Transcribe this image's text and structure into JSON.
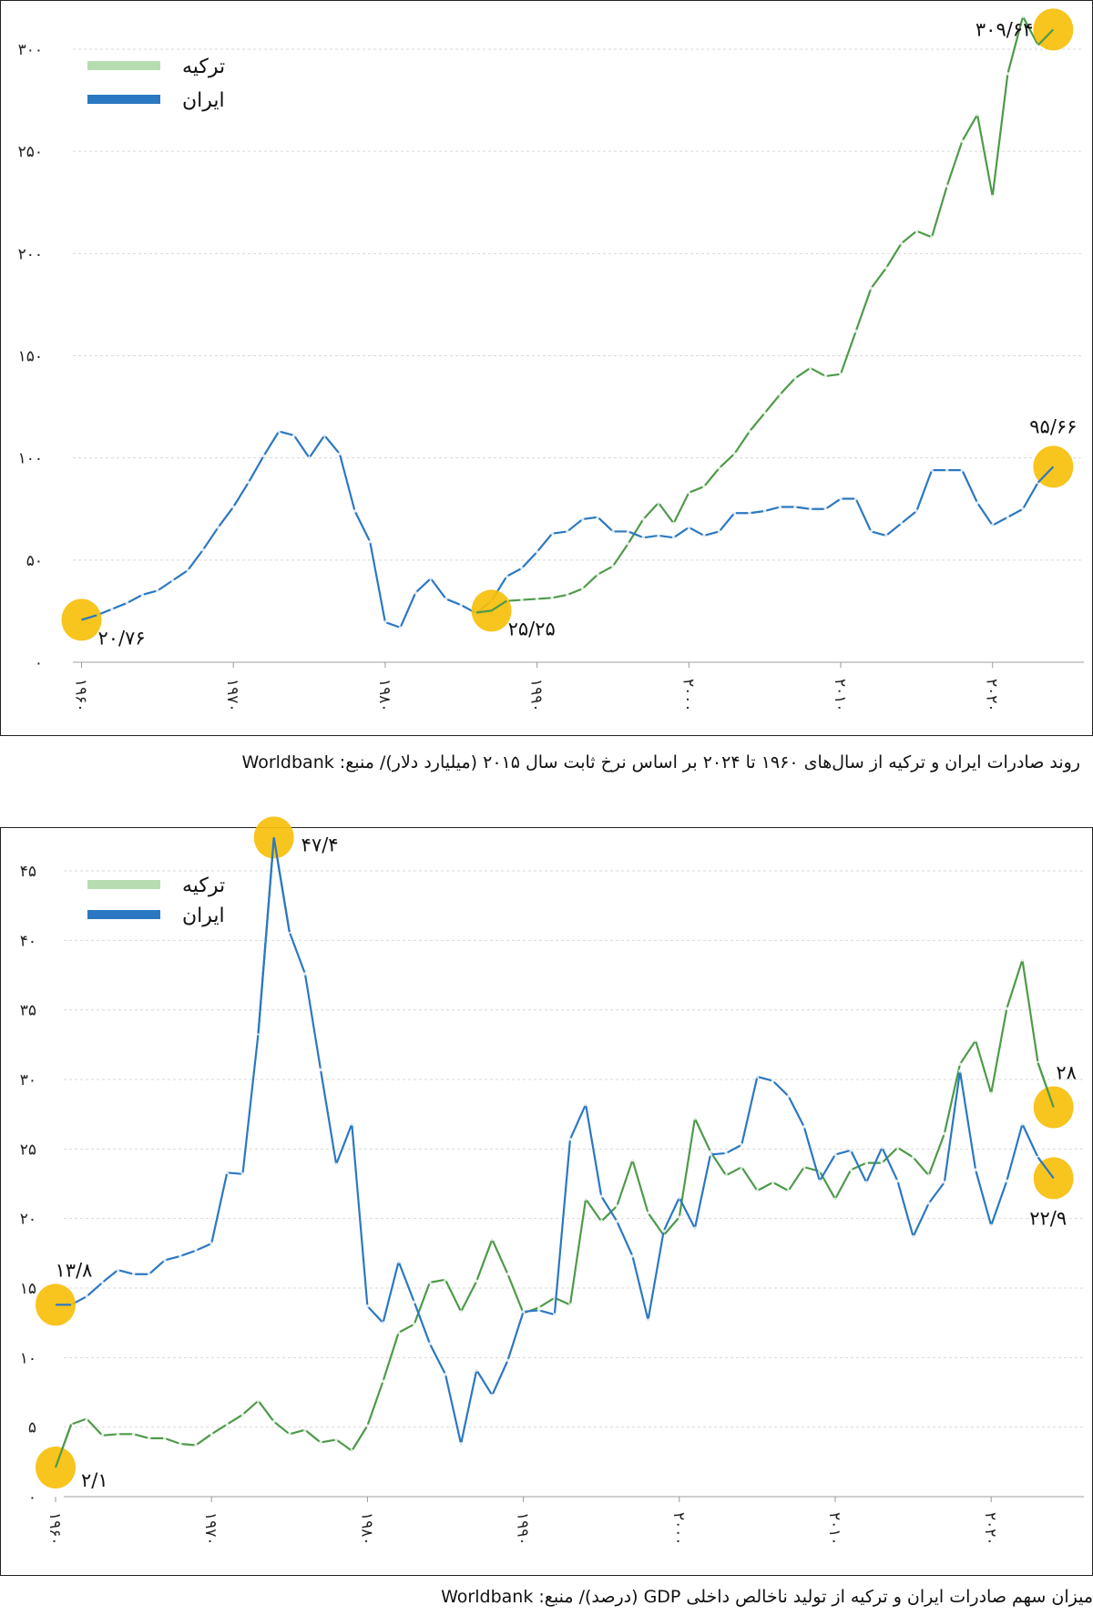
{
  "chart_data": [
    {
      "type": "line",
      "caption": "روند صادرات ایران و ترکیه از سال‌های ۱۹۶۰ تا ۲۰۲۴ بر اساس نرخ ثابت سال ۲۰۱۵ (میلیارد دلار)/ منبع: Worldbank",
      "ylim": [
        0,
        300
      ],
      "xlim": [
        1960,
        2024
      ],
      "grid": true,
      "legend": "top-left",
      "yticks": [
        0,
        50,
        100,
        150,
        200,
        250,
        300
      ],
      "ytick_labels": [
        "۰",
        "۵۰",
        "۱۰۰",
        "۱۵۰",
        "۲۰۰",
        "۲۵۰",
        "۳۰۰"
      ],
      "xticks": [
        1960,
        1970,
        1980,
        1990,
        2000,
        2010,
        2020
      ],
      "xtick_labels": [
        "۱۹۶۰",
        "۱۹۷۰",
        "۱۹۸۰",
        "۱۹۹۰",
        "۲۰۰۰",
        "۲۰۱۰",
        "۲۰۲۰"
      ],
      "x_start": 1960,
      "series": [
        {
          "name": "ترکیه",
          "color": "#4e9a4a",
          "legend_color": "#b7dcb2",
          "values": [
            null,
            null,
            null,
            null,
            null,
            null,
            null,
            null,
            null,
            null,
            null,
            null,
            null,
            null,
            null,
            null,
            null,
            null,
            null,
            null,
            null,
            null,
            null,
            null,
            null,
            null,
            24.3,
            25.25,
            30,
            30.5,
            31,
            31.5,
            33,
            36,
            43,
            47,
            58,
            70,
            78,
            68,
            83,
            86,
            95,
            102,
            113,
            122,
            131,
            139,
            144,
            140,
            141,
            162,
            183,
            193,
            205,
            211,
            208,
            233,
            255,
            268,
            228,
            288,
            316,
            302,
            309.64
          ]
        },
        {
          "name": "ایران",
          "color": "#2b78c2",
          "legend_color": "#2b78c2",
          "values": [
            20.76,
            23,
            26,
            29,
            33,
            35,
            40,
            45,
            55,
            66,
            76,
            88,
            101,
            113,
            111,
            100,
            111,
            102,
            74,
            59,
            19.6,
            17,
            34,
            41,
            31,
            28,
            24,
            30,
            42,
            46,
            54,
            63,
            64,
            70,
            71,
            64,
            64,
            61,
            62,
            61,
            66,
            62,
            64,
            73,
            73,
            74,
            76,
            76,
            75,
            75,
            80,
            80,
            64,
            62,
            68,
            74,
            94,
            94,
            94,
            78,
            67,
            71,
            75,
            88,
            95.66
          ]
        }
      ],
      "annotations": [
        {
          "text": "۳۰۹/۶۴",
          "series": "ترکیه",
          "year": 2024,
          "value": 309.64
        },
        {
          "text": "۹۵/۶۶",
          "series": "ایران",
          "year": 2024,
          "value": 95.66
        },
        {
          "text": "۲۵/۲۵",
          "series": "ترکیه",
          "year": 1987,
          "value": 25.25
        },
        {
          "text": "۲۰/۷۶",
          "series": "ایران",
          "year": 1960,
          "value": 20.76
        }
      ],
      "highlight_color": "#f7bf0b"
    },
    {
      "type": "line",
      "caption": "میزان سهم صادرات ایران و ترکیه از تولید ناخالص داخلی GDP (درصد)/ منبع: Worldbank",
      "ylim": [
        0,
        45
      ],
      "xlim": [
        1960,
        2024
      ],
      "grid": true,
      "legend": "top-left",
      "yticks": [
        0,
        5,
        10,
        15,
        20,
        25,
        30,
        35,
        40,
        45
      ],
      "ytick_labels": [
        "۰",
        "۵",
        "۱۰",
        "۱۵",
        "۲۰",
        "۲۵",
        "۳۰",
        "۳۵",
        "۴۰",
        "۴۵"
      ],
      "xticks": [
        1960,
        1970,
        1980,
        1990,
        2000,
        2010,
        2020
      ],
      "xtick_labels": [
        "۱۹۶۰",
        "۱۹۷۰",
        "۱۹۸۰",
        "۱۹۹۰",
        "۲۰۰۰",
        "۲۰۱۰",
        "۲۰۲۰"
      ],
      "x_start": 1960,
      "series": [
        {
          "name": "ترکیه",
          "color": "#4e9a4a",
          "legend_color": "#b7dcb2",
          "values": [
            2.1,
            5.2,
            5.6,
            4.4,
            4.5,
            4.5,
            4.2,
            4.2,
            3.8,
            3.7,
            4.5,
            5.2,
            5.9,
            6.9,
            5.4,
            4.5,
            4.8,
            3.9,
            4.1,
            3.3,
            5.1,
            8.3,
            11.8,
            12.4,
            15.4,
            15.6,
            13.3,
            15.5,
            18.5,
            16.0,
            13.2,
            13.6,
            14.3,
            13.8,
            21.4,
            19.8,
            20.9,
            24.2,
            20.4,
            18.8,
            20.1,
            27.2,
            24.8,
            23.1,
            23.7,
            22.0,
            22.6,
            22.0,
            23.7,
            23.4,
            21.4,
            23.5,
            24.0,
            24.0,
            25.1,
            24.4,
            23.1,
            26.1,
            31.1,
            32.8,
            29.0,
            35.1,
            38.6,
            31.2,
            28
          ]
        },
        {
          "name": "ایران",
          "color": "#2b78c2",
          "legend_color": "#2b78c2",
          "values": [
            13.8,
            13.8,
            14.4,
            15.4,
            16.3,
            16.0,
            16.0,
            17.0,
            17.3,
            17.7,
            18.2,
            23.3,
            23.2,
            33.3,
            47.4,
            40.6,
            37.6,
            30.7,
            23.9,
            26.8,
            13.7,
            12.5,
            16.9,
            14.0,
            11.0,
            8.8,
            3.8,
            9.1,
            7.3,
            9.8,
            13.3,
            13.4,
            13.1,
            25.7,
            28.2,
            21.6,
            19.8,
            17.3,
            12.7,
            19.1,
            21.5,
            19.3,
            24.6,
            24.7,
            25.3,
            30.2,
            29.9,
            28.8,
            26.6,
            22.7,
            24.6,
            24.9,
            22.6,
            25.1,
            22.7,
            18.7,
            21.1,
            22.6,
            30.6,
            23.5,
            19.5,
            22.7,
            26.8,
            24.4,
            22.9
          ]
        }
      ],
      "annotations": [
        {
          "text": "۴۷/۴",
          "series": "ایران",
          "year": 1974,
          "value": 47.4
        },
        {
          "text": "۱۳/۸",
          "series": "ایران",
          "year": 1960,
          "value": 13.8
        },
        {
          "text": "۲/۱",
          "series": "ترکیه",
          "year": 1960,
          "value": 2.1
        },
        {
          "text": "۲۸",
          "series": "ترکیه",
          "year": 2024,
          "value": 28
        },
        {
          "text": "۲۲/۹",
          "series": "ایران",
          "year": 2024,
          "value": 22.9
        }
      ],
      "highlight_color": "#f7bf0b"
    }
  ]
}
